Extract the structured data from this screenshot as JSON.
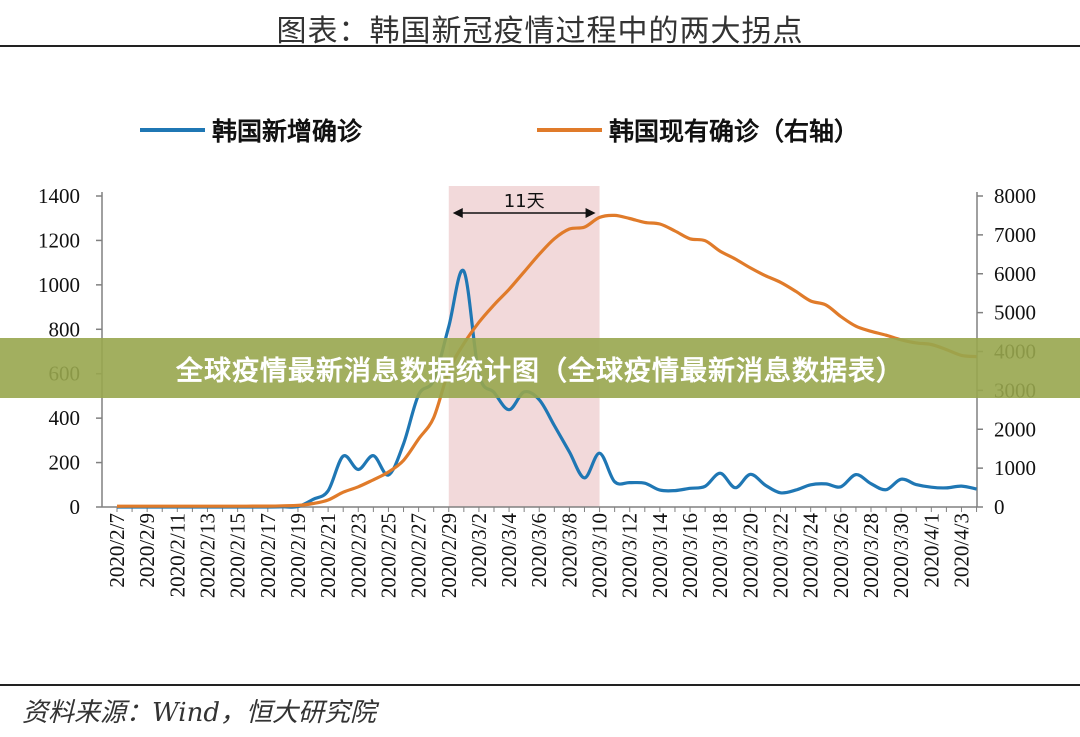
{
  "header": {
    "title": "图表：韩国新冠疫情过程中的两大拐点"
  },
  "footer": {
    "source": "资料来源：Wind，恒大研究院"
  },
  "overlay": {
    "text": "全球疫情最新消息数据统计图（全球疫情最新消息数据表）"
  },
  "colors": {
    "series1": "#1f77b4",
    "series2": "#e07b2a",
    "shade": "#f2d9da",
    "axis": "#808080"
  },
  "chart_data": {
    "type": "line",
    "x_ticks": [
      "2020/2/7",
      "2020/2/9",
      "2020/2/11",
      "2020/2/13",
      "2020/2/15",
      "2020/2/17",
      "2020/2/19",
      "2020/2/21",
      "2020/2/23",
      "2020/2/25",
      "2020/2/27",
      "2020/2/29",
      "2020/3/2",
      "2020/3/4",
      "2020/3/6",
      "2020/3/8",
      "2020/3/10",
      "2020/3/12",
      "2020/3/14",
      "2020/3/16",
      "2020/3/18",
      "2020/3/20",
      "2020/3/22",
      "2020/3/24",
      "2020/3/26",
      "2020/3/28",
      "2020/3/30",
      "2020/4/1",
      "2020/4/3"
    ],
    "x": [
      "2020/2/7",
      "2020/2/8",
      "2020/2/9",
      "2020/2/10",
      "2020/2/11",
      "2020/2/12",
      "2020/2/13",
      "2020/2/14",
      "2020/2/15",
      "2020/2/16",
      "2020/2/17",
      "2020/2/18",
      "2020/2/19",
      "2020/2/20",
      "2020/2/21",
      "2020/2/22",
      "2020/2/23",
      "2020/2/24",
      "2020/2/25",
      "2020/2/26",
      "2020/2/27",
      "2020/2/28",
      "2020/2/29",
      "2020/3/1",
      "2020/3/2",
      "2020/3/3",
      "2020/3/4",
      "2020/3/5",
      "2020/3/6",
      "2020/3/7",
      "2020/3/8",
      "2020/3/9",
      "2020/3/10",
      "2020/3/11",
      "2020/3/12",
      "2020/3/13",
      "2020/3/14",
      "2020/3/15",
      "2020/3/16",
      "2020/3/17",
      "2020/3/18",
      "2020/3/19",
      "2020/3/20",
      "2020/3/21",
      "2020/3/22",
      "2020/3/23",
      "2020/3/24",
      "2020/3/25",
      "2020/3/26",
      "2020/3/27",
      "2020/3/28",
      "2020/3/29",
      "2020/3/30",
      "2020/3/31",
      "2020/4/1",
      "2020/4/2",
      "2020/4/3",
      "2020/4/4"
    ],
    "y_left": {
      "min": 0,
      "max": 1400,
      "ticks": [
        "0",
        "200",
        "400",
        "600",
        "800",
        "1000",
        "1200",
        "1400"
      ]
    },
    "y_right": {
      "min": 0,
      "max": 8000,
      "ticks": [
        "0",
        "1000",
        "2000",
        "3000",
        "4000",
        "5000",
        "6000",
        "7000",
        "8000"
      ]
    },
    "series": [
      {
        "name": "韩国新增确诊",
        "axis": "left",
        "values": [
          0,
          0,
          0,
          0,
          0,
          0,
          0,
          0,
          0,
          0,
          0,
          1,
          2,
          34,
          73,
          229,
          169,
          231,
          144,
          284,
          505,
          571,
          813,
          1062,
          600,
          516,
          438,
          518,
          483,
          367,
          248,
          131,
          242,
          114,
          110,
          107,
          76,
          74,
          84,
          93,
          152,
          87,
          147,
          98,
          64,
          76,
          100,
          104,
          91,
          146,
          105,
          78,
          125,
          101,
          89,
          86,
          94,
          81
        ]
      },
      {
        "name": "韩国现有确诊（右轴）",
        "axis": "right",
        "values": [
          20,
          20,
          21,
          21,
          21,
          21,
          21,
          21,
          21,
          22,
          22,
          30,
          40,
          90,
          180,
          380,
          520,
          700,
          900,
          1200,
          1750,
          2300,
          3500,
          4200,
          4750,
          5200,
          5600,
          6050,
          6500,
          6900,
          7150,
          7200,
          7450,
          7500,
          7420,
          7320,
          7280,
          7100,
          6900,
          6850,
          6580,
          6380,
          6150,
          5950,
          5780,
          5550,
          5300,
          5200,
          4900,
          4650,
          4520,
          4420,
          4300,
          4220,
          4180,
          4050,
          3900,
          3870
        ]
      }
    ],
    "annotation": {
      "shade_from": "2020/2/29",
      "shade_to": "2020/3/10",
      "label": "11天"
    }
  }
}
